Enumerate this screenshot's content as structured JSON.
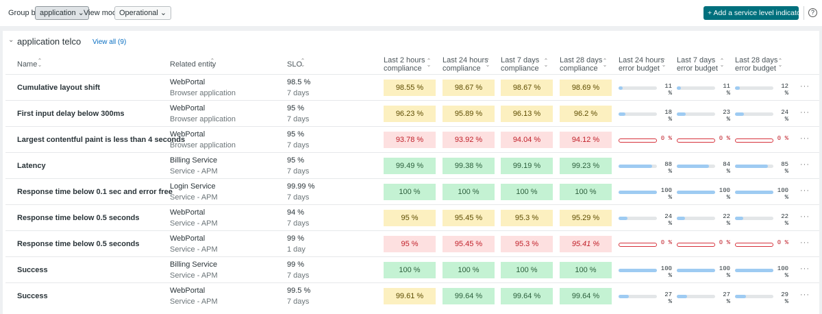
{
  "toolbar": {
    "group_by_label": "Group by",
    "group_by_value": "application",
    "view_mode_label": "View mode",
    "view_mode_value": "Operational",
    "add_button": "Add a service level indicator (SLI)",
    "help": "?"
  },
  "group": {
    "title": "application telco",
    "view_all": "View all (9)"
  },
  "table": {
    "columns": [
      "Name",
      "Related entity",
      "SLO",
      "Last 2 hours compliance",
      "Last 24 hours compliance",
      "Last 7 days compliance",
      "Last 28 days compliance",
      "Last 24 hours error budget",
      "Last 7 days error budget",
      "Last 28 days error budget"
    ],
    "rows": [
      {
        "name": "Cumulative layout shift",
        "entity": "WebPortal",
        "entity_type": "Browser application",
        "slo": "98.5 %",
        "period": "7 days",
        "compliance": [
          {
            "text": "98.55 %",
            "status": "warning"
          },
          {
            "text": "98.67 %",
            "status": "warning"
          },
          {
            "text": "98.67 %",
            "status": "warning"
          },
          {
            "text": "98.69 %",
            "status": "warning"
          }
        ],
        "budget": [
          {
            "value": 11,
            "label": "11 %"
          },
          {
            "value": 11,
            "label": "11 %"
          },
          {
            "value": 12,
            "label": "12 %"
          }
        ]
      },
      {
        "name": "First input delay below 300ms",
        "entity": "WebPortal",
        "entity_type": "Browser application",
        "slo": "95 %",
        "period": "7 days",
        "compliance": [
          {
            "text": "96.23 %",
            "status": "warning"
          },
          {
            "text": "95.89 %",
            "status": "warning"
          },
          {
            "text": "96.13 %",
            "status": "warning"
          },
          {
            "text": "96.2 %",
            "status": "warning"
          }
        ],
        "budget": [
          {
            "value": 18,
            "label": "18 %"
          },
          {
            "value": 23,
            "label": "23 %"
          },
          {
            "value": 24,
            "label": "24 %"
          }
        ]
      },
      {
        "name": "Largest contentful paint is less than 4 seconds",
        "entity": "WebPortal",
        "entity_type": "Browser application",
        "slo": "95 %",
        "period": "7 days",
        "compliance": [
          {
            "text": "93.78 %",
            "status": "error"
          },
          {
            "text": "93.92 %",
            "status": "error"
          },
          {
            "text": "94.04 %",
            "status": "error"
          },
          {
            "text": "94.12 %",
            "status": "error"
          }
        ],
        "budget": [
          {
            "value": 0,
            "label": "0 %"
          },
          {
            "value": 0,
            "label": "0 %"
          },
          {
            "value": 0,
            "label": "0 %"
          }
        ]
      },
      {
        "name": "Latency",
        "entity": "Billing Service",
        "entity_type": "Service - APM",
        "slo": "95 %",
        "period": "7 days",
        "compliance": [
          {
            "text": "99.49 %",
            "status": "ok"
          },
          {
            "text": "99.38 %",
            "status": "ok"
          },
          {
            "text": "99.19 %",
            "status": "ok"
          },
          {
            "text": "99.23 %",
            "status": "ok"
          }
        ],
        "budget": [
          {
            "value": 88,
            "label": "88 %"
          },
          {
            "value": 84,
            "label": "84 %"
          },
          {
            "value": 85,
            "label": "85 %"
          }
        ]
      },
      {
        "name": "Response time below 0.1 sec and error free",
        "entity": "Login Service",
        "entity_type": "Service - APM",
        "slo": "99.99 %",
        "period": "7 days",
        "compliance": [
          {
            "text": "100 %",
            "status": "ok"
          },
          {
            "text": "100 %",
            "status": "ok"
          },
          {
            "text": "100 %",
            "status": "ok"
          },
          {
            "text": "100 %",
            "status": "ok"
          }
        ],
        "budget": [
          {
            "value": 100,
            "label": "100 %"
          },
          {
            "value": 100,
            "label": "100 %"
          },
          {
            "value": 100,
            "label": "100 %"
          }
        ]
      },
      {
        "name": "Response time below 0.5 seconds",
        "entity": "WebPortal",
        "entity_type": "Service - APM",
        "slo": "94 %",
        "period": "7 days",
        "compliance": [
          {
            "text": "95 %",
            "status": "warning"
          },
          {
            "text": "95.45 %",
            "status": "warning"
          },
          {
            "text": "95.3 %",
            "status": "warning"
          },
          {
            "text": "95.29 %",
            "status": "warning"
          }
        ],
        "budget": [
          {
            "value": 24,
            "label": "24 %"
          },
          {
            "value": 22,
            "label": "22 %"
          },
          {
            "value": 22,
            "label": "22 %"
          }
        ]
      },
      {
        "name": "Response time below 0.5 seconds",
        "entity": "WebPortal",
        "entity_type": "Service - APM",
        "slo": "99 %",
        "period": "1 day",
        "compliance": [
          {
            "text": "95 %",
            "status": "error"
          },
          {
            "text": "95.45 %",
            "status": "error"
          },
          {
            "text": "95.3 %",
            "status": "error"
          },
          {
            "text": "95.41 %",
            "status": "error",
            "italic": true
          }
        ],
        "budget": [
          {
            "value": 0,
            "label": "0 %"
          },
          {
            "value": 0,
            "label": "0 %"
          },
          {
            "value": 0,
            "label": "0 %"
          }
        ]
      },
      {
        "name": "Success",
        "entity": "Billing Service",
        "entity_type": "Service - APM",
        "slo": "99 %",
        "period": "7 days",
        "compliance": [
          {
            "text": "100 %",
            "status": "ok"
          },
          {
            "text": "100 %",
            "status": "ok"
          },
          {
            "text": "100 %",
            "status": "ok"
          },
          {
            "text": "100 %",
            "status": "ok"
          }
        ],
        "budget": [
          {
            "value": 100,
            "label": "100 %"
          },
          {
            "value": 100,
            "label": "100 %"
          },
          {
            "value": 100,
            "label": "100 %"
          }
        ]
      },
      {
        "name": "Success",
        "entity": "WebPortal",
        "entity_type": "Service - APM",
        "slo": "99.5 %",
        "period": "7 days",
        "compliance": [
          {
            "text": "99.61 %",
            "status": "warning"
          },
          {
            "text": "99.64 %",
            "status": "ok"
          },
          {
            "text": "99.64 %",
            "status": "ok"
          },
          {
            "text": "99.64 %",
            "status": "ok"
          }
        ],
        "budget": [
          {
            "value": 27,
            "label": "27 %"
          },
          {
            "value": 27,
            "label": "27 %"
          },
          {
            "value": 29,
            "label": "29 %"
          }
        ]
      }
    ]
  }
}
